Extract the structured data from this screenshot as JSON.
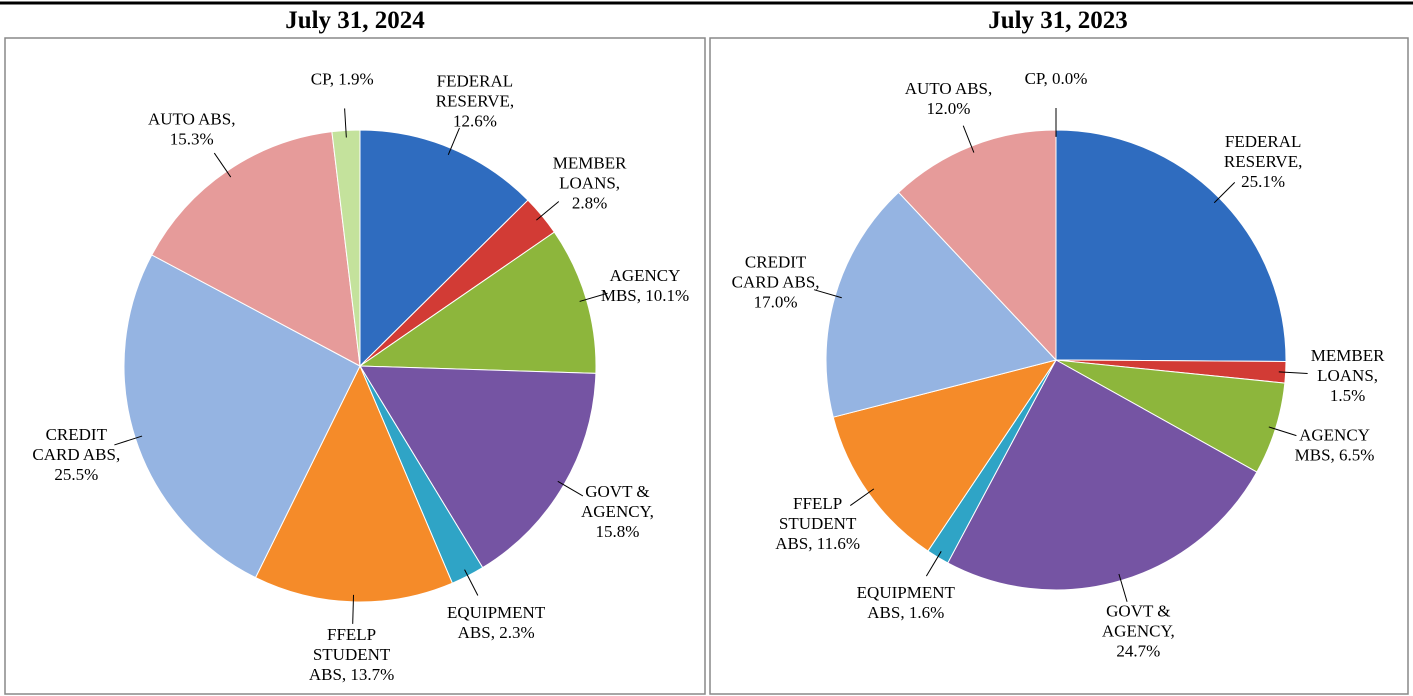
{
  "chart_data": [
    {
      "type": "pie",
      "title": "July 31, 2024",
      "values": [
        12.6,
        2.8,
        10.1,
        15.8,
        2.3,
        13.7,
        25.5,
        15.3,
        1.9
      ],
      "value_labels": [
        "FEDERAL RESERVE, 12.6%",
        "MEMBER LOANS, 2.8%",
        "AGENCY MBS, 10.1%",
        "GOVT & AGENCY, 15.8%",
        "EQUIPMENT ABS, 2.3%",
        "FFELP STUDENT ABS, 13.7%",
        "CREDIT CARD ABS, 25.5%",
        "AUTO ABS, 15.3%",
        "CP, 1.9%"
      ],
      "colors": [
        "#2f6cbf",
        "#d23b35",
        "#8db63c",
        "#7554a3",
        "#2fa4c6",
        "#f58b29",
        "#95b4e2",
        "#e69b9a",
        "#c4e29c"
      ]
    },
    {
      "type": "pie",
      "title": "July 31, 2023",
      "values": [
        25.1,
        1.5,
        6.5,
        24.7,
        1.6,
        11.6,
        17.0,
        12.0,
        0.0
      ],
      "value_labels": [
        "FEDERAL RESERVE, 25.1%",
        "MEMBER LOANS, 1.5%",
        "AGENCY MBS, 6.5%",
        "GOVT & AGENCY, 24.7%",
        "EQUIPMENT ABS, 1.6%",
        "FFELP STUDENT ABS, 11.6%",
        "CREDIT CARD ABS, 17.0%",
        "AUTO ABS, 12.0%",
        "CP, 0.0%"
      ],
      "colors": [
        "#2f6cbf",
        "#d23b35",
        "#8db63c",
        "#7554a3",
        "#2fa4c6",
        "#f58b29",
        "#95b4e2",
        "#e69b9a",
        "#c4e29c"
      ]
    }
  ]
}
